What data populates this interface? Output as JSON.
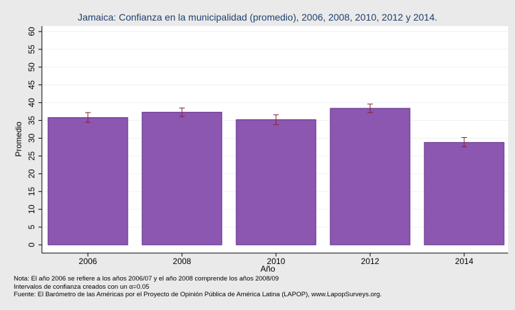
{
  "chart_data": {
    "type": "bar",
    "title": "Jamaica: Confianza en la municipalidad (promedio), 2006, 2008, 2010, 2012 y 2014.",
    "xlabel": "Año",
    "ylabel": "Promedio",
    "categories": [
      "2006",
      "2008",
      "2010",
      "2012",
      "2014"
    ],
    "values": [
      35.8,
      37.3,
      35.2,
      38.4,
      28.8
    ],
    "error_low": [
      34.5,
      36.1,
      33.8,
      37.2,
      27.6
    ],
    "error_high": [
      37.2,
      38.5,
      36.6,
      39.6,
      30.2
    ],
    "ylim": [
      0,
      60
    ],
    "yticks": [
      "0",
      "5",
      "10",
      "15",
      "20",
      "25",
      "30",
      "35",
      "40",
      "45",
      "50",
      "55",
      "60"
    ],
    "grid": true,
    "legend": "none",
    "colors": {
      "bar": "#8c57b1",
      "bar_edge": "#5e2e87",
      "error_bar": "#8b1c2b",
      "title": "#1f3f6e",
      "plot_bg": "#ffffff",
      "page_bg": "#eaeaea",
      "grid": "#eef1f4"
    }
  },
  "notes": [
    "Nota: El año 2006 se refiere a los años 2006/07 y el año 2008 comprende los años 2008/09",
    "Intervalos de confianza creados con un α=0.05",
    "Fuente: El Barómetro de las Américas por el Proyecto de Opinión Pública de América Latina (LAPOP), www.LapopSurveys.org."
  ]
}
